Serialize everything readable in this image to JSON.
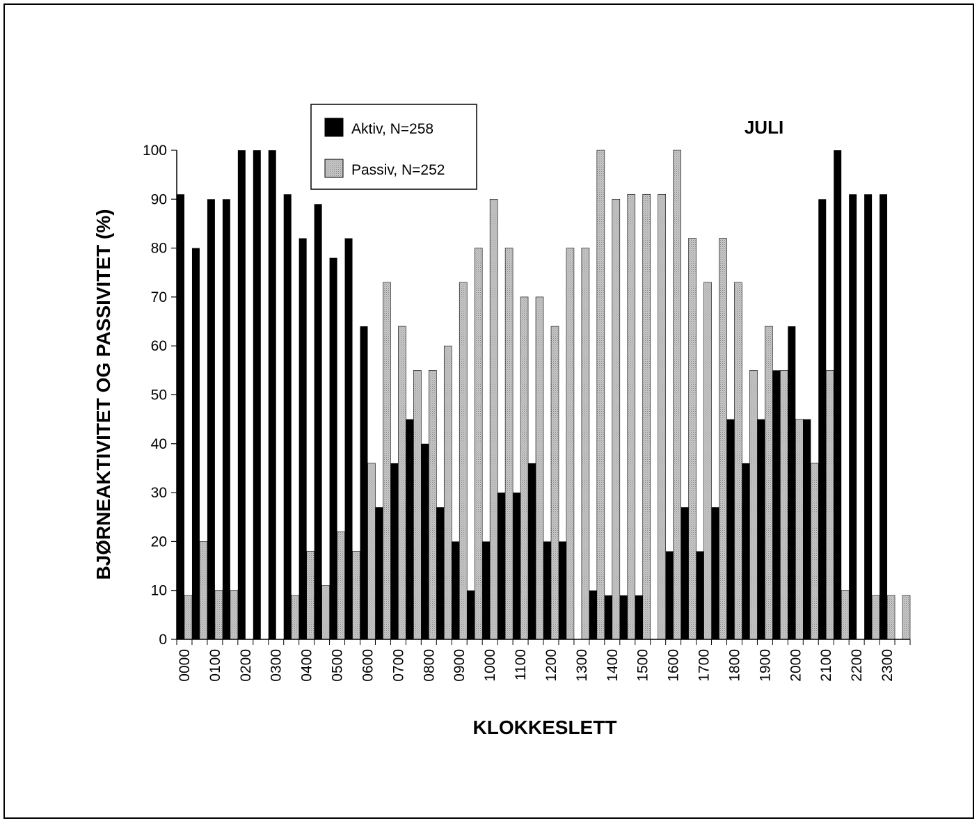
{
  "chart_data": {
    "type": "bar",
    "title": "JULI",
    "xlabel": "KLOKKESLETT",
    "ylabel": "BJØRNEAKTIVITET OG PASSIVITET (%)",
    "ylim": [
      0,
      100
    ],
    "yticks": [
      "0",
      "10",
      "20",
      "30",
      "40",
      "50",
      "60",
      "70",
      "80",
      "90",
      "100"
    ],
    "xtick_labels": [
      "0000",
      "0100",
      "0200",
      "0300",
      "0400",
      "0500",
      "0600",
      "0700",
      "0800",
      "0900",
      "1000",
      "1100",
      "1200",
      "1300",
      "1400",
      "1500",
      "1600",
      "1700",
      "1800",
      "1900",
      "2000",
      "2100",
      "2200",
      "2300"
    ],
    "legend_position": "top-left",
    "grid": false,
    "series": [
      {
        "name": "Aktiv, N=258",
        "color": "#000000",
        "values": [
          91,
          80,
          90,
          90,
          100,
          100,
          100,
          91,
          82,
          89,
          78,
          82,
          64,
          27,
          36,
          45,
          40,
          27,
          20,
          10,
          20,
          30,
          30,
          36,
          20,
          20,
          0,
          10,
          9,
          9,
          9,
          0,
          18,
          27,
          18,
          27,
          45,
          36,
          45,
          55,
          64,
          45,
          90,
          100,
          91,
          91,
          91,
          0
        ]
      },
      {
        "name": "Passiv, N=252",
        "color": "#c8c8c8",
        "values": [
          9,
          20,
          10,
          10,
          0,
          0,
          0,
          9,
          18,
          11,
          22,
          18,
          36,
          73,
          64,
          55,
          55,
          60,
          73,
          80,
          90,
          80,
          70,
          70,
          64,
          80,
          80,
          100,
          90,
          91,
          91,
          91,
          100,
          82,
          73,
          82,
          73,
          55,
          64,
          55,
          45,
          36,
          55,
          10,
          0,
          9,
          9,
          9
        ]
      }
    ]
  }
}
